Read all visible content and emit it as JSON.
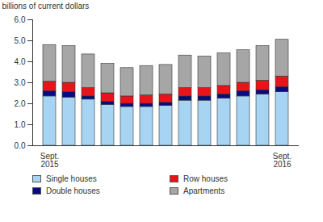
{
  "chart_data": {
    "type": "bar",
    "stacked": true,
    "y_label": "billions of current dollars",
    "categories": [
      "Sept.\n2015",
      null,
      null,
      null,
      null,
      null,
      null,
      null,
      null,
      null,
      null,
      null,
      "Sept.\n2016"
    ],
    "series": [
      {
        "name": "Single houses",
        "color": "#a6d4f2",
        "values": [
          2.35,
          2.3,
          2.2,
          1.95,
          1.85,
          1.85,
          1.9,
          2.15,
          2.15,
          2.25,
          2.35,
          2.45,
          2.55
        ]
      },
      {
        "name": "Double houses",
        "color": "#0b0b80",
        "values": [
          0.25,
          0.25,
          0.15,
          0.15,
          0.15,
          0.15,
          0.15,
          0.2,
          0.2,
          0.2,
          0.25,
          0.2,
          0.25
        ]
      },
      {
        "name": "Row houses",
        "color": "#e8141a",
        "values": [
          0.45,
          0.45,
          0.4,
          0.4,
          0.35,
          0.4,
          0.4,
          0.4,
          0.4,
          0.4,
          0.4,
          0.45,
          0.5
        ]
      },
      {
        "name": "Apartments",
        "color": "#a6a6a6",
        "values": [
          1.75,
          1.75,
          1.6,
          1.4,
          1.35,
          1.4,
          1.4,
          1.55,
          1.5,
          1.55,
          1.55,
          1.65,
          1.75
        ]
      }
    ],
    "ylim": [
      0,
      6
    ],
    "yticks": [
      0,
      1,
      2,
      3,
      4,
      5,
      6
    ],
    "grid": false,
    "legend": "bottom"
  }
}
